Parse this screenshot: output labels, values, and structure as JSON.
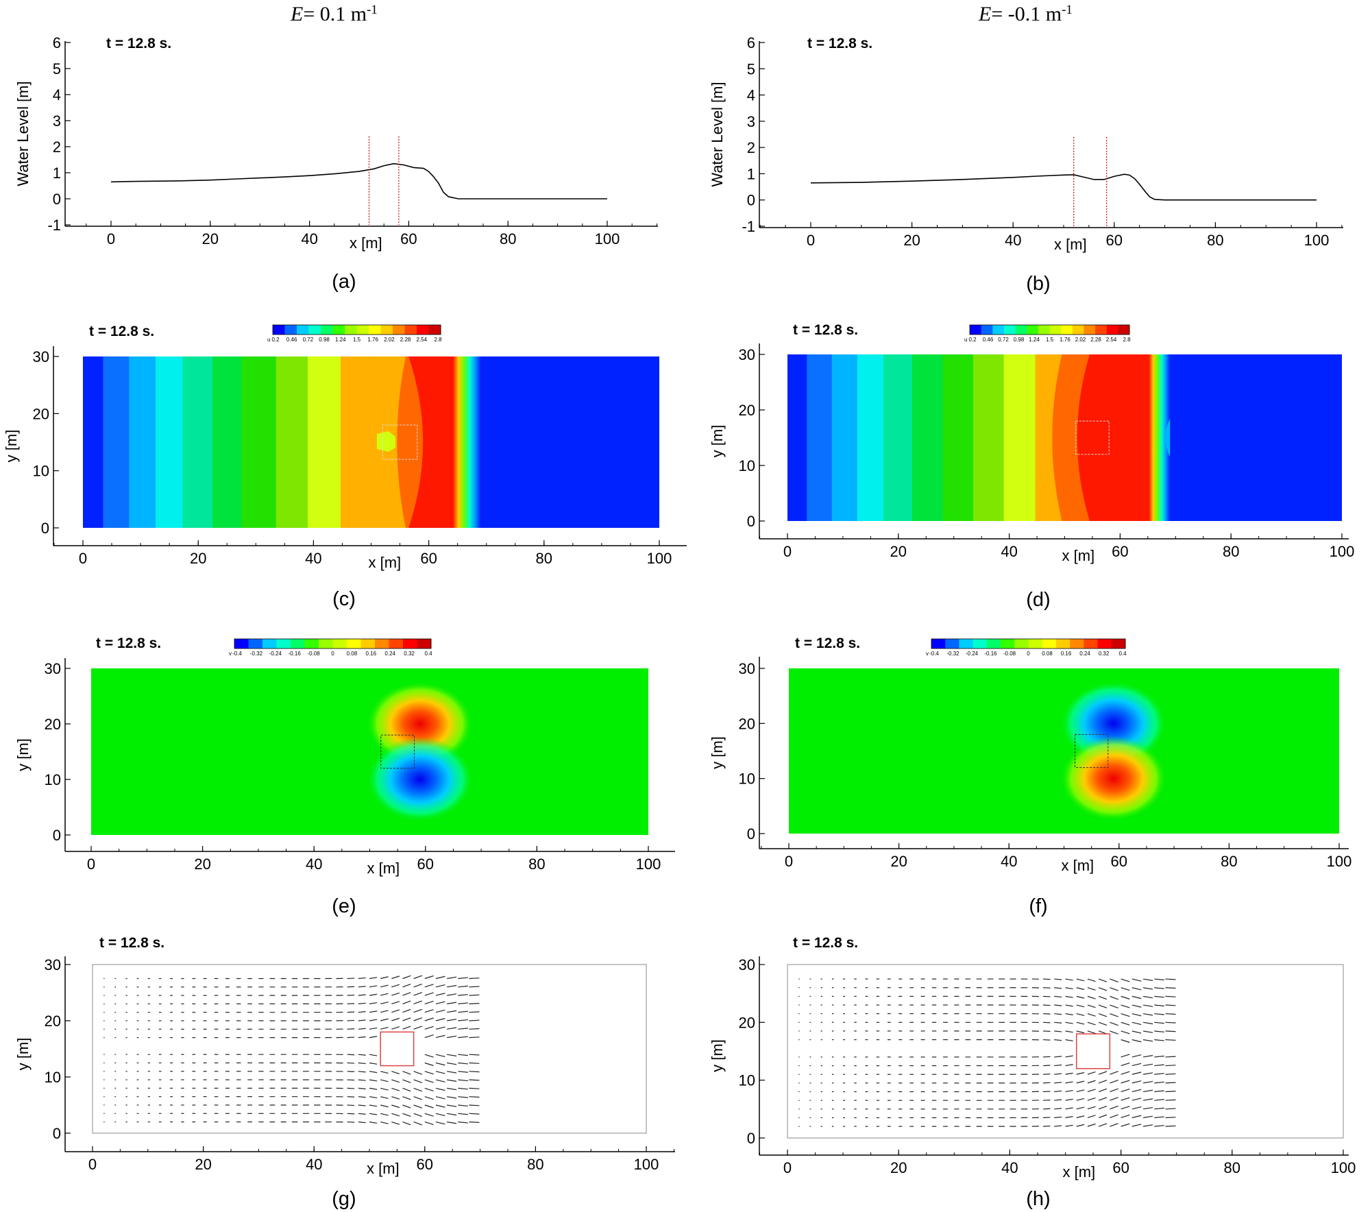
{
  "columns": [
    {
      "prefix": "E",
      "value_text": "= 0.1 m",
      "sup": "-1"
    },
    {
      "prefix": "E",
      "value_text": "= -0.1 m",
      "sup": "-1"
    }
  ],
  "time_label": "t = 12.8 s.",
  "colors": {
    "jet": [
      "#0000ff",
      "#0066ff",
      "#00ccff",
      "#00ffcc",
      "#00ff66",
      "#33ff00",
      "#99ff00",
      "#ccff00",
      "#ffff00",
      "#ffcc00",
      "#ff8800",
      "#ff4400",
      "#ff0000",
      "#cc0000"
    ],
    "u_field_left": [
      "#0022ff",
      "#0a70ff",
      "#00b4ff",
      "#00f0ee",
      "#00e69a",
      "#00e23c",
      "#22e000",
      "#7ee600",
      "#d2ff10",
      "#ffb000",
      "#ff6800",
      "#ff1800"
    ],
    "u_field_right": [
      "#0022ff",
      "#0a70ff",
      "#00b4ff",
      "#00f0ee",
      "#00e69a",
      "#00e23c",
      "#22e000",
      "#7ee600",
      "#d2ff10",
      "#ffb000",
      "#ff6800",
      "#ff1800"
    ],
    "v_background": "#00ee00",
    "red_line": "#cc0000",
    "box_red": "#dd4444"
  },
  "chart_data": [
    {
      "panel": "(a)",
      "type": "line",
      "xlabel": "x [m]",
      "ylabel": "Water Level [m]",
      "xlim": [
        -10,
        110
      ],
      "ylim": [
        -1,
        6
      ],
      "xticks": [
        0,
        20,
        40,
        60,
        80,
        100
      ],
      "yticks": [
        -1,
        0,
        1,
        2,
        3,
        4,
        5,
        6
      ],
      "grid": false,
      "x": [
        0,
        5,
        10,
        14,
        20,
        25,
        30,
        35,
        40,
        45,
        50,
        53,
        55,
        57,
        59,
        61,
        63,
        64,
        65,
        66,
        67,
        68,
        70,
        80,
        90,
        100
      ],
      "y": [
        0.65,
        0.67,
        0.68,
        0.69,
        0.72,
        0.76,
        0.8,
        0.84,
        0.89,
        0.96,
        1.05,
        1.15,
        1.27,
        1.35,
        1.3,
        1.2,
        1.17,
        1.05,
        0.85,
        0.6,
        0.25,
        0.08,
        0.0,
        0.0,
        0.0,
        0.0
      ],
      "vlines_x": [
        52,
        58
      ]
    },
    {
      "panel": "(b)",
      "type": "line",
      "xlabel": "x [m]",
      "ylabel": "Water Level [m]",
      "xlim": [
        -10,
        110
      ],
      "ylim": [
        -1,
        6
      ],
      "xticks": [
        0,
        20,
        40,
        60,
        80,
        100
      ],
      "yticks": [
        -1,
        0,
        1,
        2,
        3,
        4,
        5,
        6
      ],
      "grid": false,
      "x": [
        0,
        10,
        20,
        30,
        40,
        45,
        50,
        52,
        54,
        56,
        58,
        60,
        62,
        63,
        64,
        65,
        66,
        67,
        68,
        70,
        80,
        90,
        100
      ],
      "y": [
        0.65,
        0.67,
        0.72,
        0.78,
        0.86,
        0.91,
        0.95,
        0.96,
        0.87,
        0.78,
        0.78,
        0.9,
        0.98,
        0.95,
        0.82,
        0.6,
        0.35,
        0.12,
        0.02,
        0.0,
        0.0,
        0.0,
        0.0
      ],
      "vlines_x": [
        52,
        58.5
      ]
    },
    {
      "panel": "(c)",
      "type": "heatmap",
      "variable": "u",
      "xlabel": "x [m]",
      "ylabel": "y [m]",
      "xlim": [
        0,
        100
      ],
      "ylim": [
        0,
        30
      ],
      "xticks": [
        0,
        20,
        40,
        60,
        80,
        100
      ],
      "yticks": [
        0,
        10,
        20,
        30
      ],
      "colorbar": {
        "label": "u",
        "ticks": [
          "0.2",
          "0.46",
          "0.72",
          "0.98",
          "1.24",
          "1.5",
          "1.76",
          "2.02",
          "2.28",
          "2.54",
          "2.8"
        ]
      },
      "band_edges_x": [
        0,
        3.5,
        8,
        12.6,
        17.3,
        22.5,
        27.5,
        33.5,
        39,
        44.7,
        50.5,
        56,
        64.5,
        69
      ],
      "obstacle": {
        "x": [
          52,
          58
        ],
        "y": [
          12,
          18
        ]
      }
    },
    {
      "panel": "(d)",
      "type": "heatmap",
      "variable": "u",
      "xlabel": "x [m]",
      "ylabel": "y [m]",
      "xlim": [
        0,
        100
      ],
      "ylim": [
        0,
        30
      ],
      "xticks": [
        0,
        20,
        40,
        60,
        80,
        100
      ],
      "yticks": [
        0,
        10,
        20,
        30
      ],
      "colorbar": {
        "label": "u",
        "ticks": [
          "0.2",
          "0.46",
          "0.72",
          "0.98",
          "1.24",
          "1.5",
          "1.76",
          "2.02",
          "2.28",
          "2.54",
          "2.8"
        ]
      },
      "band_edges_x": [
        0,
        3.5,
        8,
        12.6,
        17.3,
        22.5,
        28,
        33.5,
        39,
        44.7,
        49.5,
        54.5,
        65.5,
        69
      ],
      "obstacle": {
        "x": [
          52,
          58
        ],
        "y": [
          12,
          18
        ]
      }
    },
    {
      "panel": "(e)",
      "type": "heatmap",
      "variable": "v",
      "xlabel": "x [m]",
      "ylabel": "y [m]",
      "xlim": [
        0,
        100
      ],
      "ylim": [
        0,
        30
      ],
      "xticks": [
        0,
        20,
        40,
        60,
        80,
        100
      ],
      "yticks": [
        0,
        10,
        20,
        30
      ],
      "colorbar": {
        "label": "v",
        "ticks": [
          "-0.4",
          "-0.32",
          "-0.24",
          "-0.16",
          "-0.08",
          "0",
          "0.08",
          "0.16",
          "0.24",
          "0.32",
          "0.4"
        ]
      },
      "blobs": [
        {
          "sign": "positive",
          "cx": 59,
          "cy": 20
        },
        {
          "sign": "negative",
          "cx": 59,
          "cy": 10
        }
      ],
      "obstacle": {
        "x": [
          52,
          58
        ],
        "y": [
          12,
          18
        ]
      }
    },
    {
      "panel": "(f)",
      "type": "heatmap",
      "variable": "v",
      "xlabel": "x [m]",
      "ylabel": "y [m]",
      "xlim": [
        0,
        100
      ],
      "ylim": [
        0,
        30
      ],
      "xticks": [
        0,
        20,
        40,
        60,
        80,
        100
      ],
      "yticks": [
        0,
        10,
        20,
        30
      ],
      "colorbar": {
        "label": "v",
        "ticks": [
          "-0.4",
          "-0.32",
          "-0.24",
          "-0.16",
          "-0.08",
          "0",
          "0.08",
          "0.16",
          "0.24",
          "0.32",
          "0.4"
        ]
      },
      "blobs": [
        {
          "sign": "negative",
          "cx": 59,
          "cy": 20
        },
        {
          "sign": "positive",
          "cx": 59,
          "cy": 10
        }
      ],
      "obstacle": {
        "x": [
          52,
          58
        ],
        "y": [
          12,
          18
        ]
      }
    },
    {
      "panel": "(g)",
      "type": "vector",
      "xlabel": "x [m]",
      "ylabel": "y [m]",
      "xlim": [
        0,
        100
      ],
      "ylim": [
        0,
        30
      ],
      "xticks": [
        0,
        20,
        40,
        60,
        80,
        100
      ],
      "yticks": [
        0,
        10,
        20,
        30
      ],
      "vector_field": {
        "x_start": 2,
        "x_end": 68,
        "dx": 2,
        "y_start": 2,
        "y_end": 28,
        "dy": 1.5,
        "deflection": "away_from_centerline"
      },
      "obstacle": {
        "x": [
          52,
          58
        ],
        "y": [
          12,
          18
        ]
      }
    },
    {
      "panel": "(h)",
      "type": "vector",
      "xlabel": "x [m]",
      "ylabel": "y [m]",
      "xlim": [
        0,
        100
      ],
      "ylim": [
        0,
        30
      ],
      "xticks": [
        0,
        20,
        40,
        60,
        80,
        100
      ],
      "yticks": [
        0,
        10,
        20,
        30
      ],
      "vector_field": {
        "x_start": 2,
        "x_end": 68,
        "dx": 2,
        "y_start": 2,
        "y_end": 28,
        "dy": 1.5,
        "deflection": "toward_centerline"
      },
      "obstacle": {
        "x": [
          52,
          58
        ],
        "y": [
          12,
          18
        ]
      }
    }
  ]
}
